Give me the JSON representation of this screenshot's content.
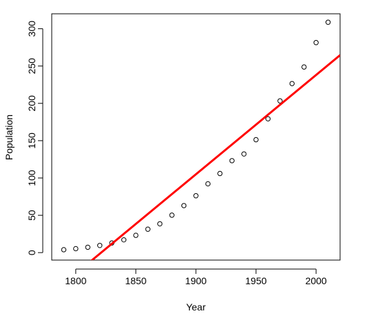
{
  "chart_data": {
    "type": "scatter",
    "xlabel": "Year",
    "ylabel": "Population",
    "xlim": [
      1780,
      2020
    ],
    "ylim": [
      -10,
      320
    ],
    "x_ticks": [
      1800,
      1850,
      1900,
      1950,
      2000
    ],
    "y_ticks": [
      0,
      50,
      100,
      150,
      200,
      250,
      300
    ],
    "x_tick_labels": [
      "1800",
      "1850",
      "1900",
      "1950",
      "2000"
    ],
    "y_tick_labels": [
      "0",
      "50",
      "100",
      "150",
      "200",
      "250",
      "300"
    ],
    "grid": false,
    "legend": "none",
    "series": [
      {
        "type": "scatter",
        "marker": "open-circle",
        "color": "#000000",
        "x": [
          1790,
          1800,
          1810,
          1820,
          1830,
          1840,
          1850,
          1860,
          1870,
          1880,
          1890,
          1900,
          1910,
          1920,
          1930,
          1940,
          1950,
          1960,
          1970,
          1980,
          1990,
          2000,
          2010
        ],
        "y": [
          3.9,
          5.3,
          7.2,
          9.6,
          12.9,
          17.1,
          23.2,
          31.4,
          38.6,
          50.2,
          63.0,
          76.2,
          92.2,
          106.0,
          123.2,
          132.2,
          151.3,
          179.3,
          203.3,
          226.5,
          248.7,
          281.4,
          308.7
        ]
      },
      {
        "type": "line",
        "color": "#ff0000",
        "x": [
          1780,
          2020
        ],
        "y": [
          -54.7,
          264.6
        ]
      }
    ]
  }
}
